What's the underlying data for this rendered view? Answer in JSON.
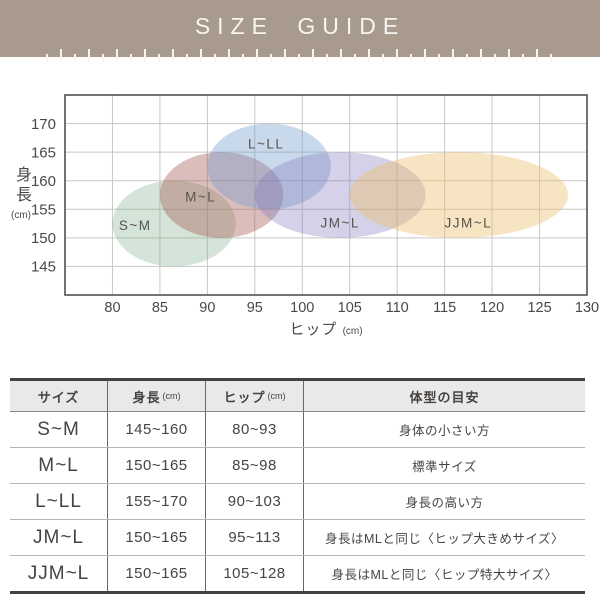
{
  "header": {
    "title": "SIZE GUIDE",
    "banner_color": "#a89a8d",
    "title_color": "#f8f5f0",
    "ruler": {
      "tick_count": 37,
      "tick_color": "#f8f5f0"
    }
  },
  "chart_data": {
    "type": "ellipse-range",
    "title": "",
    "xlabel": "ヒップ",
    "xunit": "(cm)",
    "ylabel": "身長",
    "yunit": "(cm)",
    "xlim": [
      75,
      130
    ],
    "ylim": [
      140,
      175
    ],
    "x_ticks": [
      80,
      85,
      90,
      95,
      100,
      105,
      110,
      115,
      120,
      125,
      130
    ],
    "y_ticks": [
      145,
      150,
      155,
      160,
      165,
      170
    ],
    "grid": true,
    "legend_position": "labels-inside-ellipses",
    "frame_color": "#55504d",
    "grid_color": "#c9c7c5",
    "tick_label_color": "#4c4846",
    "series_label_color": "#57534f",
    "series": [
      {
        "name": "S~M",
        "hip_range": [
          80,
          93
        ],
        "height_range": [
          145,
          160
        ],
        "fill": "rgba(125,170,135,0.32)",
        "label_at": [
          82.4,
          152.2
        ]
      },
      {
        "name": "M~L",
        "hip_range": [
          85,
          98
        ],
        "height_range": [
          150,
          165
        ],
        "fill": "rgba(165,90,85,0.40)",
        "label_at": [
          89.3,
          157.2
        ]
      },
      {
        "name": "L~LL",
        "hip_range": [
          90,
          103
        ],
        "height_range": [
          155,
          170
        ],
        "fill": "rgba(110,155,205,0.38)",
        "label_at": [
          96.2,
          166.5
        ]
      },
      {
        "name": "JM~L",
        "hip_range": [
          95,
          113
        ],
        "height_range": [
          150,
          165
        ],
        "fill": "rgba(125,115,185,0.33)",
        "label_at": [
          104.0,
          152.6
        ]
      },
      {
        "name": "JJM~L",
        "hip_range": [
          105,
          128
        ],
        "height_range": [
          150,
          165
        ],
        "fill": "rgba(235,190,110,0.42)",
        "label_at": [
          117.5,
          152.6
        ]
      }
    ]
  },
  "table": {
    "columns": [
      {
        "label": "サイズ"
      },
      {
        "label": "身長",
        "unit": "(cm)"
      },
      {
        "label": "ヒップ",
        "unit": "(cm)"
      },
      {
        "label": "体型の目安"
      }
    ],
    "rows": [
      {
        "size": "S~M",
        "height": "145~160",
        "hip": "80~93",
        "body_type": "身体の小さい方"
      },
      {
        "size": "M~L",
        "height": "150~165",
        "hip": "85~98",
        "body_type": "標準サイズ"
      },
      {
        "size": "L~LL",
        "height": "155~170",
        "hip": "90~103",
        "body_type": "身長の高い方"
      },
      {
        "size": "JM~L",
        "height": "150~165",
        "hip": "95~113",
        "body_type": "身長はMLと同じ〈ヒップ大きめサイズ〉"
      },
      {
        "size": "JJM~L",
        "height": "150~165",
        "hip": "105~128",
        "body_type": "身長はMLと同じ〈ヒップ特大サイズ〉"
      }
    ]
  }
}
